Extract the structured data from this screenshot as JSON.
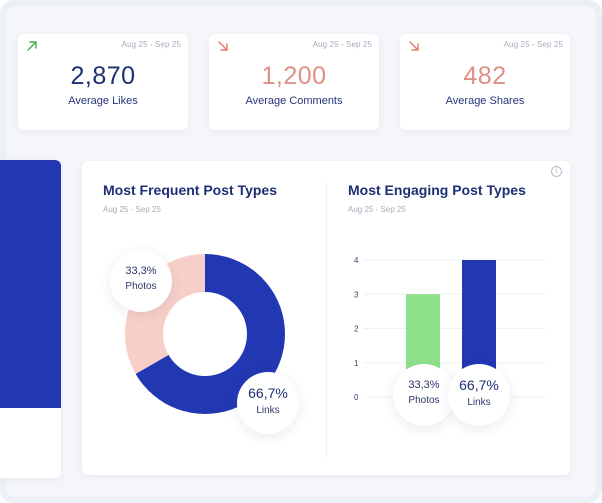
{
  "kpis": [
    {
      "arrow": "arrow-up-right",
      "arrow_color": "#4caf50",
      "range": "Aug 25 - Sep 25",
      "value": "2,870",
      "value_color": "#1e2f74",
      "label": "Average Likes"
    },
    {
      "arrow": "arrow-down-right",
      "arrow_color": "#e07a6a",
      "range": "Aug 25 - Sep 25",
      "value": "1,200",
      "value_color": "#e08f84",
      "label": "Average Comments"
    },
    {
      "arrow": "arrow-down-right",
      "arrow_color": "#e07a6a",
      "range": "Aug 25 - Sep 25",
      "value": "482",
      "value_color": "#e08f84",
      "label": "Average Shares"
    }
  ],
  "frequent": {
    "title": "Most Frequent Post Types",
    "range": "Aug 25 - Sep 25",
    "faint_mark": ". ."
  },
  "engaging": {
    "title": "Most Engaging Post Types",
    "range": "Aug 25 - Sep 25"
  },
  "info_glyph": "i",
  "colors": {
    "navy": "#2238b3",
    "title": "#1e2f74",
    "pink": "#f8cfc8",
    "green": "#8fe08a",
    "muted": "#a6acb8"
  },
  "chart_data": [
    {
      "type": "pie",
      "title": "Most Frequent Post Types",
      "subtitle": "Aug 25 - Sep 25",
      "slices": [
        {
          "label": "Photos",
          "value": 33.3,
          "display": "33,3%",
          "color": "#f8cfc8"
        },
        {
          "label": "Links",
          "value": 66.7,
          "display": "66,7%",
          "color": "#2238b3"
        }
      ]
    },
    {
      "type": "bar",
      "title": "Most Engaging Post Types",
      "subtitle": "Aug 25 - Sep 25",
      "categories": [
        "Photos",
        "Links"
      ],
      "values": [
        3,
        4
      ],
      "colors": [
        "#8fe08a",
        "#2238b3"
      ],
      "category_labels": [
        {
          "pct": "33,3%",
          "name": "Photos"
        },
        {
          "pct": "66,7%",
          "name": "Links"
        }
      ],
      "ylim": [
        0,
        4
      ],
      "yticks": [
        "0",
        "1",
        "2",
        "3",
        "4"
      ],
      "grid": true
    }
  ]
}
